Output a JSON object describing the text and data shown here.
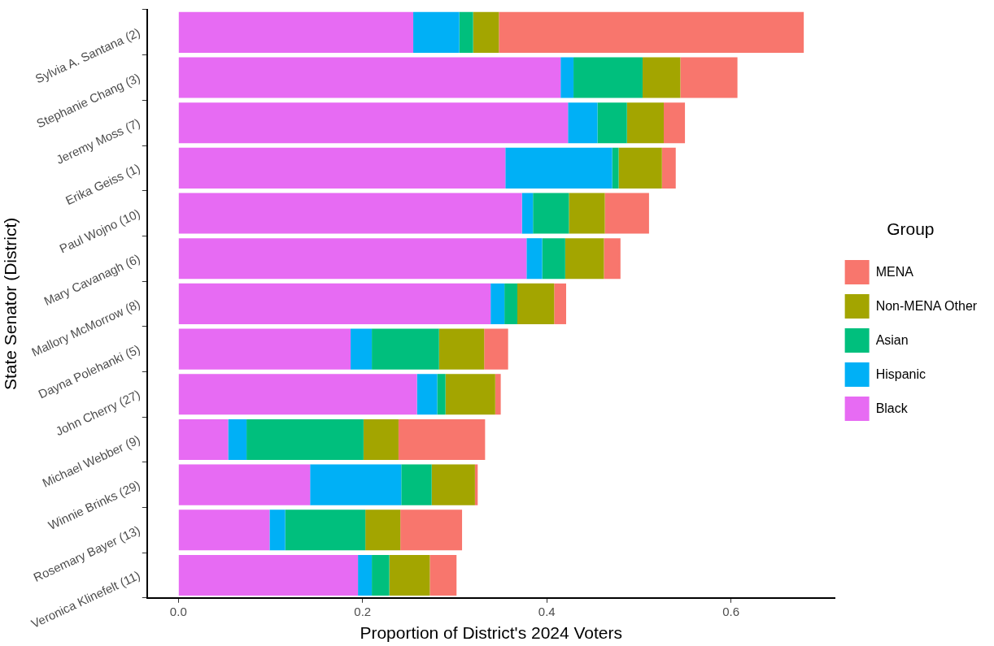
{
  "chart_data": {
    "type": "bar",
    "orientation": "horizontal",
    "stacked": true,
    "xlabel": "Proportion of District's 2024 Voters",
    "ylabel": "State Senator (District)",
    "legend_title": "Group",
    "legend": "right",
    "categories": [
      "Sylvia A. Santana (2)",
      "Stephanie Chang (3)",
      "Jeremy Moss (7)",
      "Erika Geiss (1)",
      "Paul Wojno (10)",
      "Mary Cavanagh (6)",
      "Mallory McMorrow (8)",
      "Dayna Polehanki (5)",
      "John Cherry (27)",
      "Michael Webber (9)",
      "Winnie Brinks (29)",
      "Rosemary Bayer (13)",
      "Veronica Klinefelt (11)"
    ],
    "xlim": [
      -0.034,
      0.713
    ],
    "xticks": [
      {
        "value": 0,
        "label": "0.0"
      },
      0.2,
      0.4,
      0.6
    ],
    "series": [
      {
        "name": "Black",
        "color": "#e76bf3",
        "values": [
          0.255,
          0.415,
          0.423,
          0.355,
          0.373,
          0.378,
          0.339,
          0.187,
          0.259,
          0.054,
          0.143,
          0.099,
          0.195
        ]
      },
      {
        "name": "Hispanic",
        "color": "#00b0f6",
        "values": [
          0.05,
          0.014,
          0.032,
          0.116,
          0.012,
          0.017,
          0.015,
          0.023,
          0.022,
          0.02,
          0.099,
          0.017,
          0.015
        ]
      },
      {
        "name": "Asian",
        "color": "#00bf7d",
        "values": [
          0.015,
          0.075,
          0.032,
          0.007,
          0.039,
          0.025,
          0.014,
          0.073,
          0.009,
          0.127,
          0.033,
          0.087,
          0.019
        ]
      },
      {
        "name": "Non-MENA Other",
        "color": "#a3a500",
        "values": [
          0.028,
          0.041,
          0.04,
          0.047,
          0.039,
          0.042,
          0.04,
          0.049,
          0.054,
          0.038,
          0.047,
          0.038,
          0.044
        ]
      },
      {
        "name": "MENA",
        "color": "#f8766d",
        "values": [
          0.331,
          0.062,
          0.023,
          0.015,
          0.048,
          0.018,
          0.013,
          0.026,
          0.006,
          0.094,
          0.003,
          0.067,
          0.029
        ]
      }
    ]
  }
}
